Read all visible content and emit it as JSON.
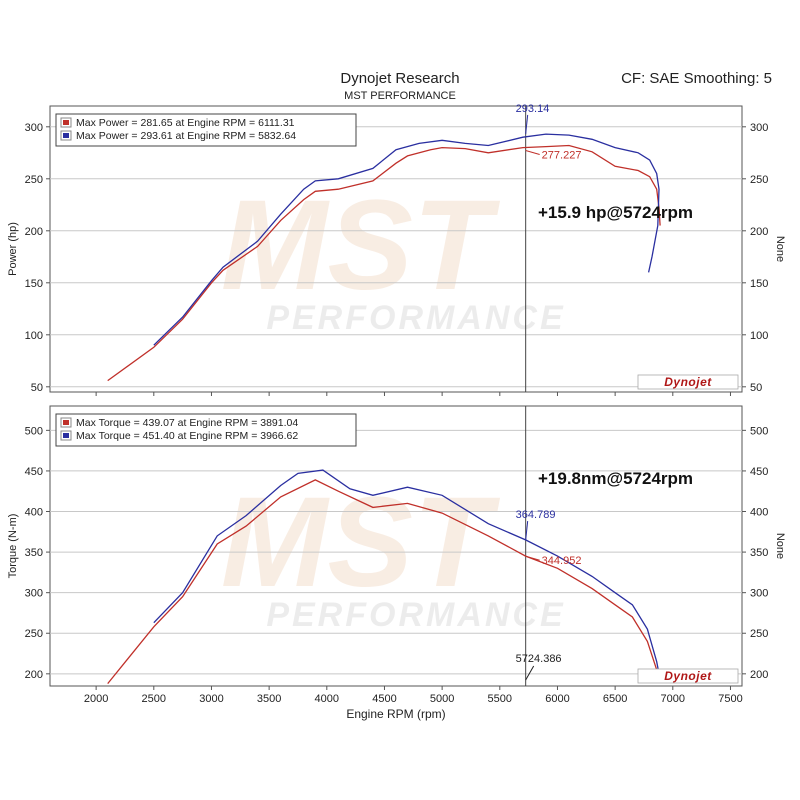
{
  "header": {
    "title": "Dynojet Research",
    "subtitle": "MST PERFORMANCE",
    "cf_info": "CF: SAE Smoothing: 5"
  },
  "watermark": {
    "brand": "MST",
    "sub": "PERFORMANCE"
  },
  "colors": {
    "run1": "#c0302a",
    "run2": "#2a2fa0",
    "cursor": "#444444",
    "grid": "#c8c8c8"
  },
  "chart_data": [
    {
      "type": "line",
      "ylabel": "Power (hp)",
      "right_label": "None",
      "ylim": [
        45,
        320
      ],
      "yticks": [
        50,
        100,
        150,
        200,
        250,
        300
      ],
      "xlim": [
        1600,
        7600
      ],
      "legend": [
        {
          "text": "Max Power = 281.65 at Engine RPM = 6111.31",
          "color": "#c0302a"
        },
        {
          "text": "Max Power = 293.61 at Engine RPM = 5832.64",
          "color": "#2a2fa0"
        }
      ],
      "annotation": "+15.9 hp@5724rpm",
      "cursor_x": 5724.386,
      "cursor_labels": [
        {
          "text": "293.14",
          "color": "#2a2fa0",
          "y": 293.14
        },
        {
          "text": "277.227",
          "color": "#c0302a",
          "y": 277.23
        }
      ],
      "series": [
        {
          "color": "#c0302a",
          "points": [
            [
              2100,
              56
            ],
            [
              2500,
              88
            ],
            [
              2750,
              115
            ],
            [
              3000,
              150
            ],
            [
              3100,
              162
            ],
            [
              3400,
              185
            ],
            [
              3600,
              210
            ],
            [
              3800,
              230
            ],
            [
              3900,
              238
            ],
            [
              4100,
              240
            ],
            [
              4400,
              248
            ],
            [
              4600,
              265
            ],
            [
              4700,
              272
            ],
            [
              4900,
              278
            ],
            [
              5000,
              280
            ],
            [
              5200,
              279
            ],
            [
              5400,
              275
            ],
            [
              5700,
              280
            ],
            [
              5900,
              281
            ],
            [
              6100,
              282
            ],
            [
              6300,
              276
            ],
            [
              6500,
              262
            ],
            [
              6700,
              258
            ],
            [
              6800,
              252
            ],
            [
              6860,
              240
            ],
            [
              6880,
              222
            ],
            [
              6890,
              205
            ]
          ]
        },
        {
          "color": "#2a2fa0",
          "points": [
            [
              2500,
              90
            ],
            [
              2750,
              117
            ],
            [
              3000,
              152
            ],
            [
              3100,
              165
            ],
            [
              3400,
              190
            ],
            [
              3600,
              216
            ],
            [
              3800,
              240
            ],
            [
              3900,
              248
            ],
            [
              4100,
              250
            ],
            [
              4400,
              260
            ],
            [
              4600,
              278
            ],
            [
              4800,
              284
            ],
            [
              5000,
              287
            ],
            [
              5200,
              284
            ],
            [
              5400,
              282
            ],
            [
              5700,
              290
            ],
            [
              5900,
              293
            ],
            [
              6100,
              292
            ],
            [
              6300,
              288
            ],
            [
              6500,
              280
            ],
            [
              6700,
              275
            ],
            [
              6800,
              268
            ],
            [
              6860,
              255
            ],
            [
              6880,
              240
            ],
            [
              6870,
              205
            ],
            [
              6820,
              175
            ],
            [
              6790,
              160
            ]
          ]
        }
      ]
    },
    {
      "type": "line",
      "ylabel": "Torque (N-m)",
      "right_label": "None",
      "xlabel": "Engine RPM (rpm)",
      "ylim": [
        185,
        530
      ],
      "yticks": [
        200,
        250,
        300,
        350,
        400,
        450,
        500
      ],
      "xlim": [
        1600,
        7600
      ],
      "xticks": [
        2000,
        2500,
        3000,
        3500,
        4000,
        4500,
        5000,
        5500,
        6000,
        6500,
        7000,
        7500
      ],
      "legend": [
        {
          "text": "Max Torque = 439.07 at Engine RPM = 3891.04",
          "color": "#c0302a"
        },
        {
          "text": "Max Torque = 451.40 at Engine RPM = 3966.62",
          "color": "#2a2fa0"
        }
      ],
      "annotation": "+19.8nm@5724rpm",
      "cursor_x": 5724.386,
      "cursor_value_label": "5724.386",
      "cursor_labels": [
        {
          "text": "364.789",
          "color": "#2a2fa0",
          "y": 364.79
        },
        {
          "text": "344.952",
          "color": "#c0302a",
          "y": 344.95
        }
      ],
      "series": [
        {
          "color": "#c0302a",
          "points": [
            [
              2100,
              188
            ],
            [
              2500,
              258
            ],
            [
              2750,
              295
            ],
            [
              3050,
              360
            ],
            [
              3300,
              382
            ],
            [
              3600,
              418
            ],
            [
              3900,
              439
            ],
            [
              4100,
              425
            ],
            [
              4400,
              405
            ],
            [
              4700,
              410
            ],
            [
              5000,
              398
            ],
            [
              5400,
              370
            ],
            [
              5724,
              345
            ],
            [
              6000,
              330
            ],
            [
              6300,
              305
            ],
            [
              6500,
              285
            ],
            [
              6650,
              270
            ],
            [
              6780,
              240
            ],
            [
              6860,
              205
            ],
            [
              6880,
              195
            ]
          ]
        },
        {
          "color": "#2a2fa0",
          "points": [
            [
              2500,
              263
            ],
            [
              2750,
              300
            ],
            [
              3050,
              370
            ],
            [
              3300,
              395
            ],
            [
              3600,
              432
            ],
            [
              3750,
              447
            ],
            [
              3966,
              451
            ],
            [
              4200,
              428
            ],
            [
              4400,
              420
            ],
            [
              4700,
              430
            ],
            [
              5000,
              420
            ],
            [
              5400,
              385
            ],
            [
              5724,
              365
            ],
            [
              6000,
              345
            ],
            [
              6300,
              320
            ],
            [
              6500,
              300
            ],
            [
              6650,
              285
            ],
            [
              6780,
              255
            ],
            [
              6860,
              215
            ],
            [
              6880,
              200
            ]
          ]
        }
      ]
    }
  ]
}
